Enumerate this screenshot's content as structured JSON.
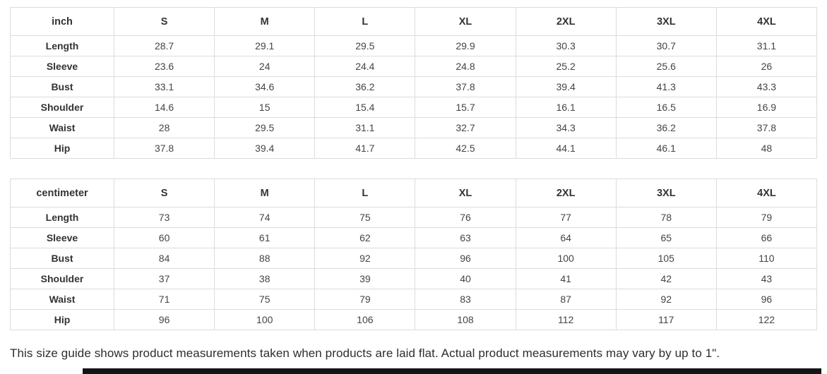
{
  "tables": [
    {
      "unit": "inch",
      "sizes": [
        "S",
        "M",
        "L",
        "XL",
        "2XL",
        "3XL",
        "4XL"
      ],
      "rows": [
        {
          "label": "Length",
          "values": [
            "28.7",
            "29.1",
            "29.5",
            "29.9",
            "30.3",
            "30.7",
            "31.1"
          ]
        },
        {
          "label": "Sleeve",
          "values": [
            "23.6",
            "24",
            "24.4",
            "24.8",
            "25.2",
            "25.6",
            "26"
          ]
        },
        {
          "label": "Bust",
          "values": [
            "33.1",
            "34.6",
            "36.2",
            "37.8",
            "39.4",
            "41.3",
            "43.3"
          ]
        },
        {
          "label": "Shoulder",
          "values": [
            "14.6",
            "15",
            "15.4",
            "15.7",
            "16.1",
            "16.5",
            "16.9"
          ]
        },
        {
          "label": "Waist",
          "values": [
            "28",
            "29.5",
            "31.1",
            "32.7",
            "34.3",
            "36.2",
            "37.8"
          ]
        },
        {
          "label": "Hip",
          "values": [
            "37.8",
            "39.4",
            "41.7",
            "42.5",
            "44.1",
            "46.1",
            "48"
          ]
        }
      ]
    },
    {
      "unit": "centimeter",
      "sizes": [
        "S",
        "M",
        "L",
        "XL",
        "2XL",
        "3XL",
        "4XL"
      ],
      "rows": [
        {
          "label": "Length",
          "values": [
            "73",
            "74",
            "75",
            "76",
            "77",
            "78",
            "79"
          ]
        },
        {
          "label": "Sleeve",
          "values": [
            "60",
            "61",
            "62",
            "63",
            "64",
            "65",
            "66"
          ]
        },
        {
          "label": "Bust",
          "values": [
            "84",
            "88",
            "92",
            "96",
            "100",
            "105",
            "110"
          ]
        },
        {
          "label": "Shoulder",
          "values": [
            "37",
            "38",
            "39",
            "40",
            "41",
            "42",
            "43"
          ]
        },
        {
          "label": "Waist",
          "values": [
            "71",
            "75",
            "79",
            "83",
            "87",
            "92",
            "96"
          ]
        },
        {
          "label": "Hip",
          "values": [
            "96",
            "100",
            "106",
            "108",
            "112",
            "117",
            "122"
          ]
        }
      ]
    }
  ],
  "footer": {
    "note": "This size guide shows product measurements taken when products are laid flat. Actual product measurements may vary by up to 1\"."
  },
  "colors": {
    "border": "#dcdcdc",
    "text": "#444444",
    "bold_text": "#333333",
    "scrollbar": "#141414"
  }
}
